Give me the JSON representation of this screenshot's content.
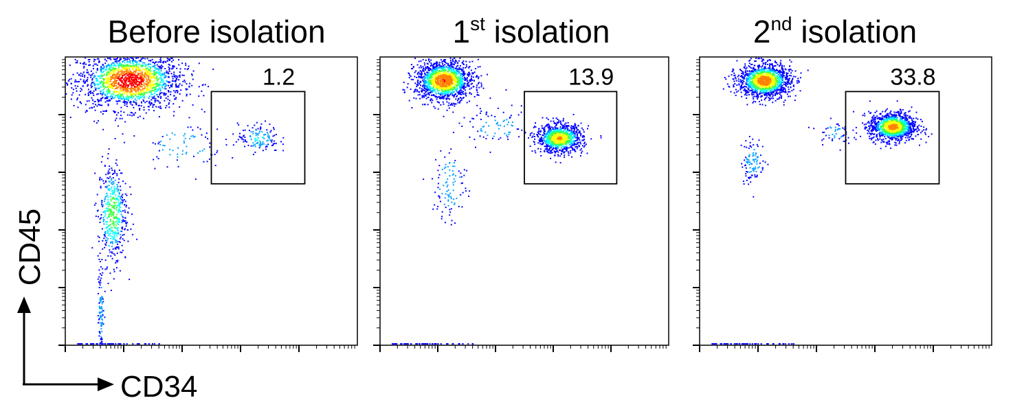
{
  "chart_data": [
    {
      "type": "scatter",
      "title": "Before isolation",
      "title_superscript": "",
      "title_rest": "",
      "gate_value": "1.2",
      "gate": {
        "x_range": [
          2.5,
          4.1
        ],
        "y_range": [
          2.8,
          4.4
        ]
      },
      "x_scale": "log",
      "y_scale": "log",
      "xlim": [
        0,
        5
      ],
      "ylim": [
        0,
        5
      ],
      "populations": [
        {
          "name": "",
          "center": [
            1.1,
            4.6
          ],
          "spread": [
            0.9,
            0.5
          ],
          "weight": 0.7
        },
        {
          "name": "",
          "center": [
            0.8,
            2.3
          ],
          "spread": [
            0.25,
            0.9
          ],
          "weight": 0.18
        },
        {
          "name": "",
          "center": [
            3.3,
            3.6
          ],
          "spread": [
            0.35,
            0.25
          ],
          "weight": 0.05
        },
        {
          "name": "",
          "center": [
            0.6,
            0.6
          ],
          "spread": [
            0.05,
            0.8
          ],
          "weight": 0.04
        },
        {
          "name": "",
          "center": [
            2.0,
            3.5
          ],
          "spread": [
            0.7,
            0.4
          ],
          "weight": 0.03
        }
      ]
    },
    {
      "type": "scatter",
      "title": "1",
      "title_superscript": "st",
      "title_rest": " isolation",
      "gate_value": "13.9",
      "gate": {
        "x_range": [
          2.5,
          4.1
        ],
        "y_range": [
          2.8,
          4.4
        ]
      },
      "x_scale": "log",
      "y_scale": "log",
      "xlim": [
        0,
        5
      ],
      "ylim": [
        0,
        5
      ],
      "populations": [
        {
          "name": "",
          "center": [
            1.1,
            4.6
          ],
          "spread": [
            0.5,
            0.35
          ],
          "weight": 0.55
        },
        {
          "name": "",
          "center": [
            3.1,
            3.6
          ],
          "spread": [
            0.4,
            0.25
          ],
          "weight": 0.38
        },
        {
          "name": "",
          "center": [
            1.2,
            2.8
          ],
          "spread": [
            0.3,
            0.7
          ],
          "weight": 0.04
        },
        {
          "name": "",
          "center": [
            2.0,
            3.8
          ],
          "spread": [
            0.6,
            0.3
          ],
          "weight": 0.03
        }
      ]
    },
    {
      "type": "scatter",
      "title": "2",
      "title_superscript": "nd",
      "title_rest": " isolation",
      "gate_value": "33.8",
      "gate": {
        "x_range": [
          2.5,
          4.1
        ],
        "y_range": [
          2.8,
          4.4
        ]
      },
      "x_scale": "log",
      "y_scale": "log",
      "xlim": [
        0,
        5
      ],
      "ylim": [
        0,
        5
      ],
      "populations": [
        {
          "name": "",
          "center": [
            1.1,
            4.6
          ],
          "spread": [
            0.45,
            0.3
          ],
          "weight": 0.5
        },
        {
          "name": "",
          "center": [
            3.3,
            3.8
          ],
          "spread": [
            0.4,
            0.25
          ],
          "weight": 0.44
        },
        {
          "name": "",
          "center": [
            0.9,
            3.2
          ],
          "spread": [
            0.2,
            0.4
          ],
          "weight": 0.04
        },
        {
          "name": "",
          "center": [
            2.3,
            3.7
          ],
          "spread": [
            0.3,
            0.2
          ],
          "weight": 0.02
        }
      ]
    }
  ],
  "axes": {
    "xlabel": "CD34",
    "ylabel": "CD45"
  },
  "density_colors": [
    "#0000ff",
    "#00a0ff",
    "#00ffff",
    "#40ff40",
    "#ffff00",
    "#ff8000",
    "#ff0000"
  ],
  "colors": {
    "frame": "#000000",
    "text": "#000000",
    "background": "#ffffff"
  }
}
